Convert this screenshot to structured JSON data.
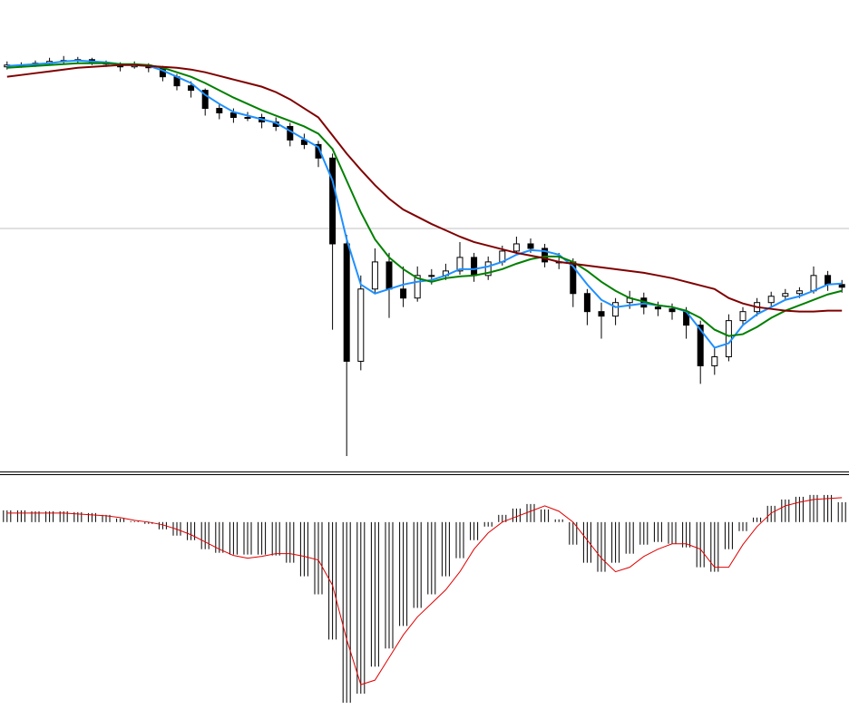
{
  "chart_data": [
    {
      "type": "candlestick",
      "ylim": [
        0,
        520
      ],
      "hline": 267,
      "hline_color": "#c0c0c0",
      "up_color": "#ffffff",
      "down_color": "#000000",
      "wick_color": "#000000",
      "ohlc": [
        [
          446,
          452,
          443,
          448
        ],
        [
          448,
          451,
          445,
          448
        ],
        [
          448,
          453,
          446,
          450
        ],
        [
          450,
          456,
          448,
          452
        ],
        [
          452,
          458,
          449,
          453
        ],
        [
          453,
          457,
          450,
          454
        ],
        [
          454,
          456,
          448,
          451
        ],
        [
          451,
          453,
          446,
          449
        ],
        [
          449,
          451,
          441,
          446
        ],
        [
          446,
          452,
          444,
          448
        ],
        [
          448,
          450,
          440,
          445
        ],
        [
          445,
          447,
          430,
          435
        ],
        [
          435,
          438,
          420,
          425
        ],
        [
          425,
          430,
          412,
          420
        ],
        [
          420,
          422,
          392,
          400
        ],
        [
          400,
          405,
          388,
          395
        ],
        [
          395,
          400,
          384,
          390
        ],
        [
          390,
          396,
          386,
          390
        ],
        [
          390,
          394,
          378,
          385
        ],
        [
          385,
          390,
          375,
          380
        ],
        [
          380,
          384,
          358,
          365
        ],
        [
          365,
          372,
          355,
          360
        ],
        [
          360,
          364,
          335,
          345
        ],
        [
          345,
          350,
          155,
          250
        ],
        [
          250,
          260,
          15,
          120
        ],
        [
          120,
          215,
          110,
          200
        ],
        [
          200,
          245,
          195,
          230
        ],
        [
          230,
          240,
          168,
          200
        ],
        [
          200,
          225,
          180,
          190
        ],
        [
          190,
          225,
          186,
          215
        ],
        [
          215,
          222,
          205,
          215
        ],
        [
          215,
          228,
          210,
          220
        ],
        [
          220,
          252,
          216,
          235
        ],
        [
          235,
          240,
          208,
          215
        ],
        [
          215,
          236,
          210,
          230
        ],
        [
          230,
          248,
          226,
          242
        ],
        [
          242,
          258,
          238,
          250
        ],
        [
          250,
          256,
          240,
          245
        ],
        [
          245,
          250,
          224,
          230
        ],
        [
          230,
          240,
          222,
          230
        ],
        [
          230,
          234,
          180,
          195
        ],
        [
          195,
          200,
          160,
          175
        ],
        [
          175,
          185,
          145,
          170
        ],
        [
          170,
          190,
          160,
          185
        ],
        [
          185,
          198,
          178,
          190
        ],
        [
          190,
          196,
          172,
          180
        ],
        [
          180,
          186,
          170,
          178
        ],
        [
          178,
          184,
          166,
          175
        ],
        [
          175,
          180,
          145,
          160
        ],
        [
          160,
          165,
          95,
          115
        ],
        [
          115,
          135,
          105,
          125
        ],
        [
          125,
          172,
          120,
          165
        ],
        [
          165,
          180,
          160,
          175
        ],
        [
          175,
          190,
          170,
          185
        ],
        [
          185,
          197,
          180,
          192
        ],
        [
          192,
          200,
          188,
          195
        ],
        [
          195,
          202,
          190,
          198
        ],
        [
          198,
          225,
          195,
          215
        ],
        [
          215,
          220,
          198,
          205
        ],
        [
          205,
          210,
          196,
          202
        ]
      ],
      "series": [
        {
          "color": "#1e90ff",
          "values": [
            447,
            448,
            449,
            450,
            452,
            453,
            452,
            451,
            449,
            448,
            447,
            442,
            435,
            428,
            415,
            405,
            396,
            392,
            388,
            384,
            375,
            366,
            357,
            320,
            255,
            205,
            195,
            200,
            205,
            208,
            210,
            215,
            222,
            222,
            225,
            230,
            238,
            243,
            242,
            238,
            225,
            205,
            188,
            180,
            182,
            184,
            182,
            180,
            175,
            155,
            135,
            140,
            160,
            172,
            180,
            188,
            192,
            198,
            205,
            206
          ]
        },
        {
          "color": "#008000",
          "values": [
            445,
            446,
            447,
            448,
            449,
            450,
            450,
            450,
            449,
            449,
            448,
            445,
            440,
            435,
            428,
            420,
            412,
            405,
            398,
            392,
            386,
            380,
            372,
            355,
            320,
            285,
            255,
            235,
            222,
            212,
            208,
            212,
            214,
            215,
            218,
            222,
            228,
            233,
            236,
            236,
            230,
            220,
            208,
            198,
            190,
            186,
            182,
            180,
            176,
            168,
            155,
            148,
            150,
            158,
            168,
            176,
            182,
            188,
            194,
            198
          ]
        },
        {
          "color": "#800000",
          "values": [
            435,
            437,
            439,
            441,
            443,
            445,
            446,
            447,
            448,
            448,
            447,
            446,
            445,
            443,
            440,
            436,
            432,
            428,
            424,
            418,
            410,
            400,
            390,
            370,
            350,
            332,
            315,
            300,
            288,
            280,
            272,
            265,
            258,
            252,
            248,
            244,
            240,
            237,
            234,
            230,
            228,
            226,
            224,
            222,
            220,
            218,
            215,
            212,
            208,
            204,
            200,
            190,
            184,
            180,
            178,
            176,
            175,
            175,
            176,
            176
          ]
        }
      ]
    },
    {
      "type": "macd",
      "ylim": [
        -218,
        50
      ],
      "hist_color": "#000000",
      "signal_color": "#e00000",
      "histogram": [
        13,
        13,
        12,
        12,
        12,
        11,
        10,
        8,
        4,
        1,
        -2,
        -8,
        -15,
        -20,
        -30,
        -34,
        -36,
        -36,
        -36,
        -37,
        -45,
        -60,
        -80,
        -130,
        -200,
        -190,
        -160,
        -140,
        -115,
        -95,
        -80,
        -60,
        -40,
        -20,
        -5,
        8,
        15,
        20,
        14,
        3,
        -25,
        -45,
        -55,
        -45,
        -35,
        -25,
        -22,
        -24,
        -28,
        -50,
        -55,
        -30,
        -10,
        5,
        18,
        25,
        28,
        30,
        30,
        22
      ],
      "signal": [
        10,
        10,
        10,
        10,
        10,
        9,
        8,
        7,
        5,
        2,
        0,
        -3,
        -8,
        -14,
        -22,
        -30,
        -37,
        -40,
        -38,
        -35,
        -35,
        -38,
        -42,
        -70,
        -130,
        -180,
        -175,
        -150,
        -125,
        -105,
        -90,
        -75,
        -55,
        -30,
        -12,
        0,
        6,
        12,
        18,
        12,
        0,
        -20,
        -40,
        -55,
        -50,
        -38,
        -30,
        -24,
        -24,
        -30,
        -50,
        -50,
        -25,
        -5,
        10,
        18,
        22,
        25,
        26,
        27
      ]
    }
  ]
}
